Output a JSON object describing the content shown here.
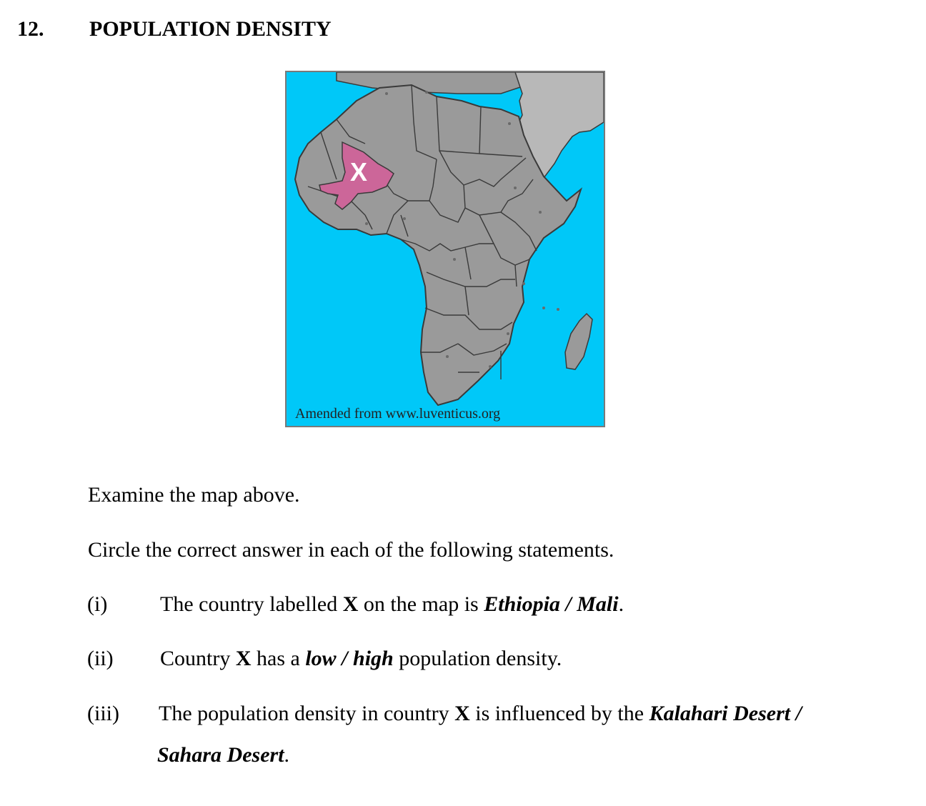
{
  "question": {
    "number": "12.",
    "title": "POPULATION DENSITY"
  },
  "map": {
    "label": "X",
    "credit": "Amended from www.luventicus.org",
    "colors": {
      "ocean": "#00c8f8",
      "land": "#9a9a9a",
      "other_continent": "#b8b8b8",
      "highlight": "#cc6699",
      "border": "#3a3a3a"
    }
  },
  "instructions": {
    "examine": "Examine the map above.",
    "circle": "Circle the correct answer in each of the following statements."
  },
  "statements": [
    {
      "roman": "(i)",
      "before": "The country labelled ",
      "bold": "X",
      "middle": " on the map is ",
      "choices": "Ethiopia / Mali",
      "after": "."
    },
    {
      "roman": "(ii)",
      "before": "Country ",
      "bold": "X",
      "middle": " has a ",
      "choices": "low / high",
      "after": " population density."
    },
    {
      "roman": "(iii)",
      "before": "The population density in country ",
      "bold": "X",
      "middle": " is influenced by the ",
      "choices": "Kalahari Desert /",
      "choices_line2": "Sahara Desert",
      "after": "."
    }
  ]
}
